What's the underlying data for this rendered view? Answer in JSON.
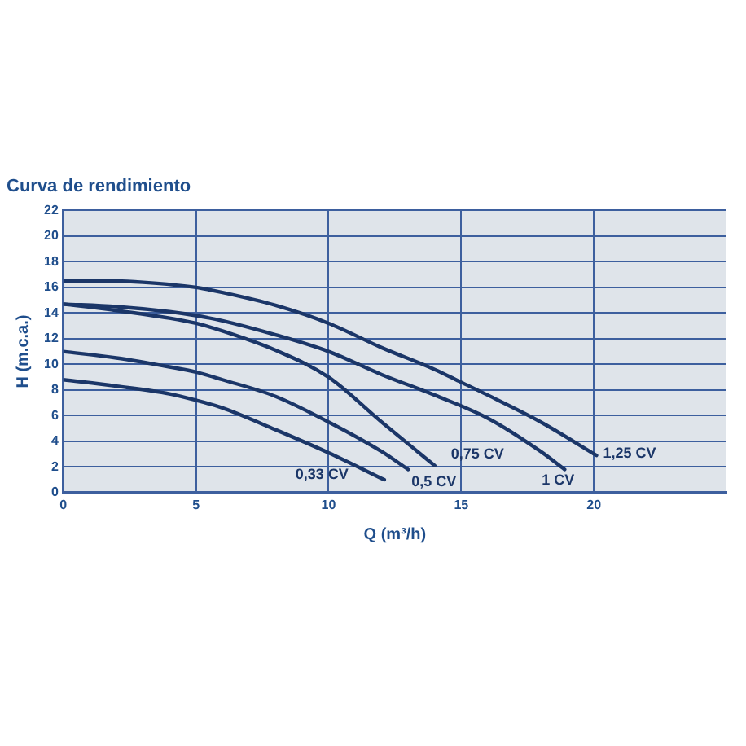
{
  "chart_data": {
    "type": "line",
    "title": "Curva de rendimiento",
    "xlabel": "Q (m³/h)",
    "ylabel": "H (m.c.a.)",
    "xlim": [
      0,
      25
    ],
    "xticks": [
      0,
      5,
      10,
      15,
      20
    ],
    "ylim": [
      0,
      22
    ],
    "yticks": [
      0,
      2,
      4,
      6,
      8,
      10,
      12,
      14,
      16,
      18,
      20,
      22
    ],
    "grid": true,
    "legend": false,
    "marker": "none",
    "line_style": "solid",
    "series": [
      {
        "name": "0,33 CV",
        "color": "#1b3668",
        "x": [
          0,
          2,
          4,
          5,
          6,
          8,
          10,
          12.1
        ],
        "values": [
          8.8,
          8.3,
          7.7,
          7.2,
          6.6,
          4.9,
          3.1,
          1.0
        ]
      },
      {
        "name": "0,5 CV",
        "color": "#1b3668",
        "x": [
          0,
          2,
          4,
          5,
          6,
          8,
          10,
          12,
          13
        ],
        "values": [
          11,
          10.5,
          9.8,
          9.4,
          8.8,
          7.5,
          5.5,
          3.2,
          1.8
        ]
      },
      {
        "name": "0,75 CV",
        "color": "#1b3668",
        "x": [
          0,
          2,
          4,
          5,
          6,
          8,
          10,
          12,
          14
        ],
        "values": [
          14.7,
          14.2,
          13.6,
          13.2,
          12.6,
          11.1,
          9.0,
          5.5,
          2.1
        ]
      },
      {
        "name": "1 CV",
        "color": "#1b3668",
        "x": [
          0,
          2,
          4,
          5,
          6,
          8,
          10,
          12,
          14,
          16,
          18,
          18.9
        ],
        "values": [
          14.7,
          14.5,
          14.1,
          13.8,
          13.4,
          12.3,
          11.0,
          9.2,
          7.6,
          5.8,
          3.2,
          1.8
        ]
      },
      {
        "name": "1,25 CV",
        "color": "#1b3668",
        "x": [
          0,
          2,
          3,
          5,
          6,
          8,
          10,
          12,
          14,
          15,
          16,
          18,
          20.1
        ],
        "values": [
          16.5,
          16.5,
          16.4,
          16.0,
          15.6,
          14.6,
          13.2,
          11.3,
          9.6,
          8.6,
          7.6,
          5.5,
          2.9
        ]
      }
    ]
  }
}
